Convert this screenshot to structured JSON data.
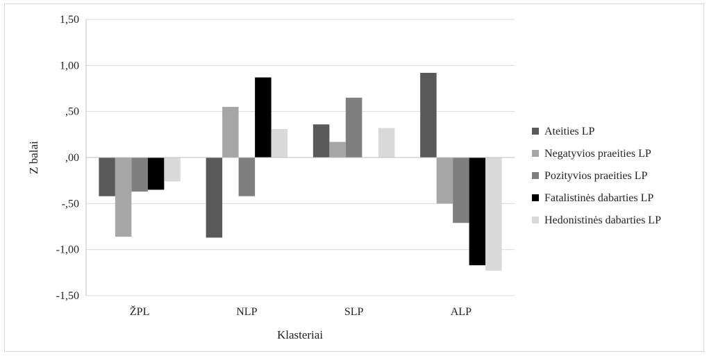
{
  "chart_data": {
    "type": "bar",
    "title": "",
    "xlabel": "Klasteriai",
    "ylabel": "Z balai",
    "ylim": [
      -1.5,
      1.5
    ],
    "yticks": [
      1.5,
      1.0,
      0.5,
      0.0,
      -0.5,
      -1.0,
      -1.5
    ],
    "ytick_labels": [
      "1,50",
      "1,00",
      ",50",
      ",00",
      "-,50",
      "-1,00",
      "-1,50"
    ],
    "categories": [
      "ŽPL",
      "NLP",
      "SLP",
      "ALP"
    ],
    "grid": true,
    "legend_position": "right",
    "series": [
      {
        "name": "Ateities LP",
        "color": "#595959",
        "values": [
          -0.42,
          -0.87,
          0.36,
          0.92
        ]
      },
      {
        "name": "Negatyvios praeities LP",
        "color": "#a6a6a6",
        "values": [
          -0.86,
          0.55,
          0.17,
          -0.5
        ]
      },
      {
        "name": "Pozityvios praeities LP",
        "color": "#7f7f7f",
        "values": [
          -0.37,
          -0.42,
          0.65,
          -0.71
        ]
      },
      {
        "name": "Fatalistinės dabarties LP",
        "color": "#000000",
        "values": [
          -0.35,
          0.87,
          0.0,
          -1.17
        ]
      },
      {
        "name": "Hedonistinės dabarties LP",
        "color": "#d9d9d9",
        "values": [
          -0.26,
          0.31,
          0.32,
          -1.23
        ]
      }
    ]
  }
}
